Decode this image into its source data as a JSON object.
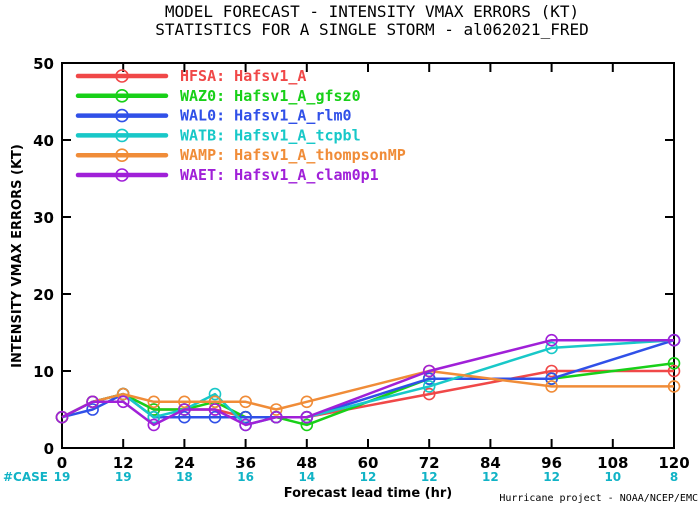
{
  "chart_data": {
    "type": "line",
    "title": "MODEL FORECAST - INTENSITY VMAX ERRORS (KT)",
    "subtitle": "STATISTICS FOR A SINGLE STORM - al062021_FRED",
    "xlabel": "Forecast lead time (hr)",
    "ylabel": "INTENSITY VMAX ERRORS (KT)",
    "xlim": [
      0,
      120
    ],
    "ylim": [
      0,
      50
    ],
    "xticks": [
      "0",
      "12",
      "24",
      "36",
      "48",
      "60",
      "72",
      "84",
      "96",
      "108",
      "120"
    ],
    "yticks": [
      "0",
      "10",
      "20",
      "30",
      "40",
      "50"
    ],
    "case_label": "#CASE",
    "case_x": [
      0,
      12,
      24,
      36,
      48,
      60,
      72,
      84,
      96,
      108,
      120
    ],
    "case_counts": [
      "19",
      "19",
      "18",
      "16",
      "14",
      "12",
      "12",
      "12",
      "12",
      "10",
      "8"
    ],
    "credit": "Hurricane project - NOAA/NCEP/EMC",
    "legend_position": "top-left",
    "series": [
      {
        "name": "HFSA: Hafsv1_A",
        "color": "#f04848",
        "x": [
          0,
          6,
          12,
          18,
          24,
          30,
          36,
          42,
          48,
          72,
          96,
          120
        ],
        "values": [
          4,
          6,
          7,
          5,
          5,
          5,
          4,
          4,
          4,
          7,
          10,
          10
        ]
      },
      {
        "name": "WAZ0: Hafsv1_A_gfsz0",
        "color": "#18d018",
        "x": [
          0,
          6,
          12,
          18,
          24,
          30,
          36,
          42,
          48,
          72,
          96,
          120
        ],
        "values": [
          4,
          6,
          7,
          5,
          5,
          6,
          4,
          4,
          3,
          9,
          9,
          11
        ]
      },
      {
        "name": "WAL0: Hafsv1_A_rlm0",
        "color": "#3050e8",
        "x": [
          0,
          6,
          12,
          18,
          24,
          30,
          36,
          42,
          48,
          72,
          96,
          120
        ],
        "values": [
          4,
          5,
          7,
          4,
          4,
          4,
          4,
          4,
          4,
          9,
          9,
          14
        ]
      },
      {
        "name": "WATB: Hafsv1_A_tcpbl",
        "color": "#18c8c8",
        "x": [
          0,
          6,
          12,
          18,
          24,
          30,
          36,
          42,
          48,
          72,
          96,
          120
        ],
        "values": [
          4,
          6,
          7,
          4,
          5,
          7,
          3,
          4,
          4,
          8,
          13,
          14
        ]
      },
      {
        "name": "WAMP: Hafsv1_A_thompsonMP",
        "color": "#f08c38",
        "x": [
          0,
          6,
          12,
          18,
          24,
          30,
          36,
          42,
          48,
          72,
          96,
          120
        ],
        "values": [
          4,
          6,
          7,
          6,
          6,
          6,
          6,
          5,
          6,
          10,
          8,
          8
        ]
      },
      {
        "name": "WAET: Hafsv1_A_clam0p1",
        "color": "#a020d8",
        "x": [
          0,
          6,
          12,
          18,
          24,
          30,
          36,
          42,
          48,
          72,
          96,
          120
        ],
        "values": [
          4,
          6,
          6,
          3,
          5,
          5,
          3,
          4,
          4,
          10,
          14,
          14
        ]
      }
    ]
  }
}
